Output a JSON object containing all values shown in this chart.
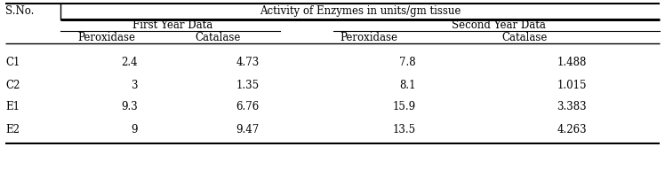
{
  "title": "Activity of Enzymes in units/gm tissue",
  "col1_header": "S.No.",
  "group1_header": "First Year Data",
  "group2_header": "Second Year Data",
  "sub_headers": [
    "Peroxidase",
    "Catalase",
    "Peroxidase",
    "Catalase"
  ],
  "rows": [
    [
      "C1",
      "2.4",
      "4.73",
      "7.8",
      "1.488"
    ],
    [
      "C2",
      "3",
      "1.35",
      "8.1",
      "1.015"
    ],
    [
      "E1",
      "9.3",
      "6.76",
      "15.9",
      "3.383"
    ],
    [
      "E2",
      "9",
      "9.47",
      "13.5",
      "4.263"
    ]
  ],
  "background_color": "#ffffff",
  "font_size": 8.5,
  "font_family": "DejaVu Serif"
}
